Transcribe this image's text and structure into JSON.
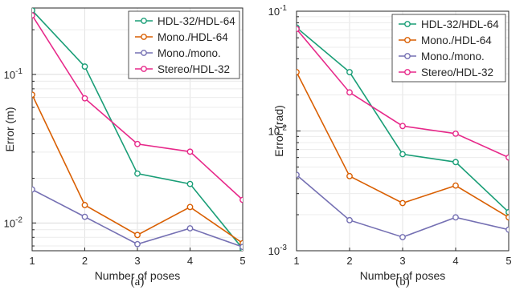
{
  "chart_data": [
    {
      "type": "line",
      "caption": "(a)",
      "xlabel": "Number of poses",
      "ylabel": "Error (m)",
      "yscale": "log",
      "grid": true,
      "legend_position": "top-right",
      "xlim": [
        1,
        5
      ],
      "ylim": [
        0.0065,
        0.28
      ],
      "x": [
        1,
        2,
        3,
        4,
        5
      ],
      "xticks": [
        "1",
        "2",
        "3",
        "4",
        "5"
      ],
      "yticks": [
        {
          "value": 0.01,
          "base": "10",
          "exp": "-2"
        },
        {
          "value": 0.1,
          "base": "10",
          "exp": "-1"
        }
      ],
      "series": [
        {
          "name": "HDL-32/HDL-64",
          "color": "#1a9e77",
          "values": [
            0.27,
            0.113,
            0.0215,
            0.0183,
            0.0067
          ]
        },
        {
          "name": "Mono./HDL-64",
          "color": "#d95f02",
          "values": [
            0.073,
            0.0132,
            0.0083,
            0.0128,
            0.0073
          ]
        },
        {
          "name": "Mono./mono.",
          "color": "#7570b3",
          "values": [
            0.0168,
            0.011,
            0.0072,
            0.0092,
            0.0069
          ]
        },
        {
          "name": "Stereo/HDL-32",
          "color": "#e7298a",
          "values": [
            0.25,
            0.069,
            0.034,
            0.0302,
            0.0143
          ]
        }
      ]
    },
    {
      "type": "line",
      "caption": "(b)",
      "xlabel": "Number of poses",
      "ylabel": "Error (rad)",
      "yscale": "log",
      "grid": true,
      "legend_position": "top-right",
      "xlim": [
        1,
        5
      ],
      "ylim": [
        0.001,
        0.1
      ],
      "x": [
        1,
        2,
        3,
        4,
        5
      ],
      "xticks": [
        "1",
        "2",
        "3",
        "4",
        "5"
      ],
      "yticks": [
        {
          "value": 0.001,
          "base": "10",
          "exp": "-3"
        },
        {
          "value": 0.01,
          "base": "10",
          "exp": "-2"
        },
        {
          "value": 0.1,
          "base": "10",
          "exp": "-1"
        }
      ],
      "series": [
        {
          "name": "HDL-32/HDL-64",
          "color": "#1a9e77",
          "values": [
            0.073,
            0.031,
            0.0064,
            0.0055,
            0.0021
          ]
        },
        {
          "name": "Mono./HDL-64",
          "color": "#d95f02",
          "values": [
            0.031,
            0.0042,
            0.0025,
            0.0035,
            0.0019
          ]
        },
        {
          "name": "Mono./mono.",
          "color": "#7570b3",
          "values": [
            0.0043,
            0.0018,
            0.0013,
            0.0019,
            0.0015
          ]
        },
        {
          "name": "Stereo/HDL-32",
          "color": "#e7298a",
          "values": [
            0.071,
            0.021,
            0.011,
            0.0095,
            0.006
          ]
        }
      ]
    }
  ]
}
